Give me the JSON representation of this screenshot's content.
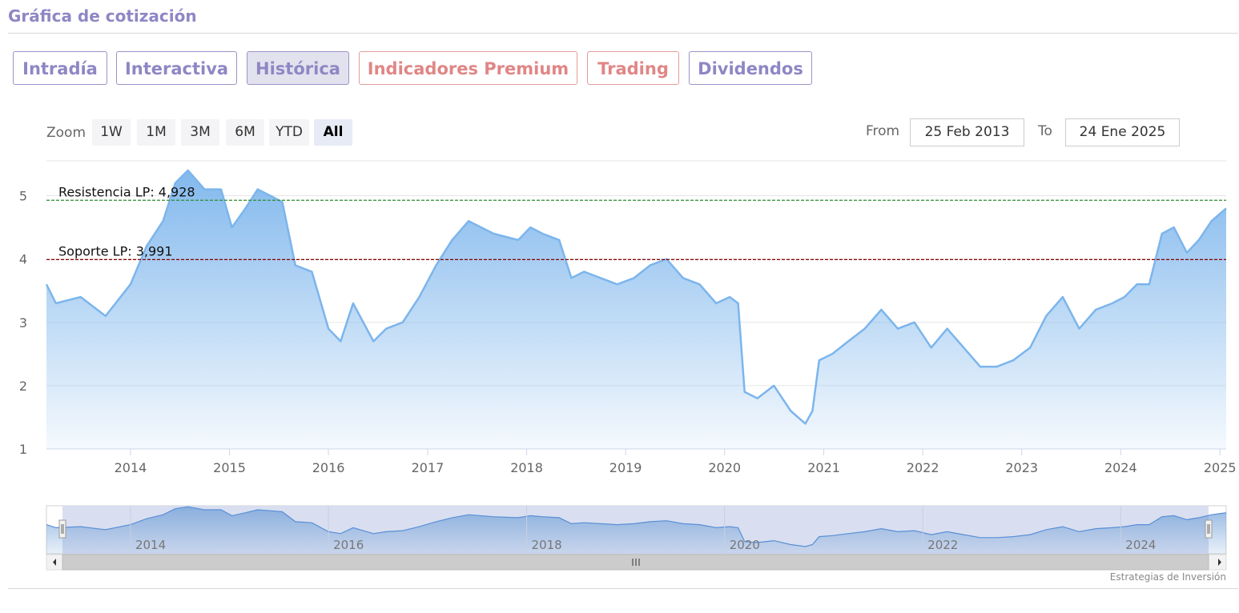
{
  "header": {
    "title": "Gráfica de cotización"
  },
  "tabs": [
    {
      "label": "Intradía",
      "active": false,
      "premium": false
    },
    {
      "label": "Interactiva",
      "active": false,
      "premium": false
    },
    {
      "label": "Histórica",
      "active": true,
      "premium": false
    },
    {
      "label": "Indicadores Premium",
      "active": false,
      "premium": true
    },
    {
      "label": "Trading",
      "active": false,
      "premium": true
    },
    {
      "label": "Dividendos",
      "active": false,
      "premium": false
    }
  ],
  "range_selector": {
    "zoom_label": "Zoom",
    "buttons": [
      "1W",
      "1M",
      "3M",
      "6M",
      "YTD",
      "All"
    ],
    "selected": "All",
    "from_label": "From",
    "from_value": "25 Feb 2013",
    "to_label": "To",
    "to_value": "24 Ene 2025"
  },
  "colors": {
    "accent": "#8e87c4",
    "premium": "#e08686",
    "series_line": "#7cb5ec",
    "resistance_line": "#2e8b2e",
    "support_line": "#8b0000"
  },
  "chart_data": {
    "type": "area",
    "x_start": "2013-02-25",
    "x_end": "2025-01-24",
    "ylim": [
      1,
      5.5
    ],
    "yticks": [
      1,
      2,
      3,
      4,
      5
    ],
    "xticks": [
      "2014",
      "2015",
      "2016",
      "2017",
      "2018",
      "2019",
      "2020",
      "2021",
      "2022",
      "2023",
      "2024",
      "2025"
    ],
    "grid": true,
    "series": [
      {
        "x": [
          "2013-02-25",
          "2013-04-01",
          "2013-07-01",
          "2013-10-01",
          "2014-01-01",
          "2014-03-01",
          "2014-05-01",
          "2014-06-15",
          "2014-08-01",
          "2014-10-01",
          "2014-12-01",
          "2015-01-10",
          "2015-03-01",
          "2015-04-15",
          "2015-06-01",
          "2015-07-15",
          "2015-09-01",
          "2015-11-01",
          "2016-01-01",
          "2016-02-15",
          "2016-04-01",
          "2016-06-15",
          "2016-08-01",
          "2016-10-01",
          "2016-12-01",
          "2017-02-01",
          "2017-04-01",
          "2017-06-01",
          "2017-09-01",
          "2017-12-01",
          "2018-01-15",
          "2018-03-01",
          "2018-05-01",
          "2018-06-15",
          "2018-08-01",
          "2018-10-01",
          "2018-12-01",
          "2019-02-01",
          "2019-04-01",
          "2019-06-01",
          "2019-08-01",
          "2019-10-01",
          "2019-12-01",
          "2020-01-20",
          "2020-02-20",
          "2020-03-15",
          "2020-05-01",
          "2020-07-01",
          "2020-09-01",
          "2020-10-25",
          "2020-11-20",
          "2020-12-15",
          "2021-02-01",
          "2021-04-01",
          "2021-06-01",
          "2021-08-01",
          "2021-10-01",
          "2021-12-01",
          "2022-02-01",
          "2022-04-01",
          "2022-06-01",
          "2022-08-01",
          "2022-10-01",
          "2022-12-01",
          "2023-02-01",
          "2023-04-01",
          "2023-06-01",
          "2023-08-01",
          "2023-10-01",
          "2023-12-01",
          "2024-01-15",
          "2024-03-01",
          "2024-04-15",
          "2024-06-01",
          "2024-07-15",
          "2024-09-01",
          "2024-10-15",
          "2024-12-01",
          "2025-01-24"
        ],
        "y": [
          3.6,
          3.3,
          3.4,
          3.1,
          3.6,
          4.2,
          4.6,
          5.2,
          5.4,
          5.1,
          5.1,
          4.5,
          4.8,
          5.1,
          5.0,
          4.9,
          3.9,
          3.8,
          2.9,
          2.7,
          3.3,
          2.7,
          2.9,
          3.0,
          3.4,
          3.9,
          4.3,
          4.6,
          4.4,
          4.3,
          4.5,
          4.4,
          4.3,
          3.7,
          3.8,
          3.7,
          3.6,
          3.7,
          3.9,
          4.0,
          3.7,
          3.6,
          3.3,
          3.4,
          3.3,
          1.9,
          1.8,
          2.0,
          1.6,
          1.4,
          1.6,
          2.4,
          2.5,
          2.7,
          2.9,
          3.2,
          2.9,
          3.0,
          2.6,
          2.9,
          2.6,
          2.3,
          2.3,
          2.4,
          2.6,
          3.1,
          3.4,
          2.9,
          3.2,
          3.3,
          3.4,
          3.6,
          3.6,
          4.4,
          4.5,
          4.1,
          4.3,
          4.6,
          4.8
        ]
      }
    ],
    "plot_lines": [
      {
        "label": "Resistencia LP: 4,928",
        "value": 4.928
      },
      {
        "label": "Soporte LP: 3,991",
        "value": 3.991
      }
    ],
    "navigator": {
      "xticks": [
        "2014",
        "2016",
        "2018",
        "2020",
        "2022",
        "2024"
      ]
    }
  },
  "credits": "Estrategias de Inversión"
}
